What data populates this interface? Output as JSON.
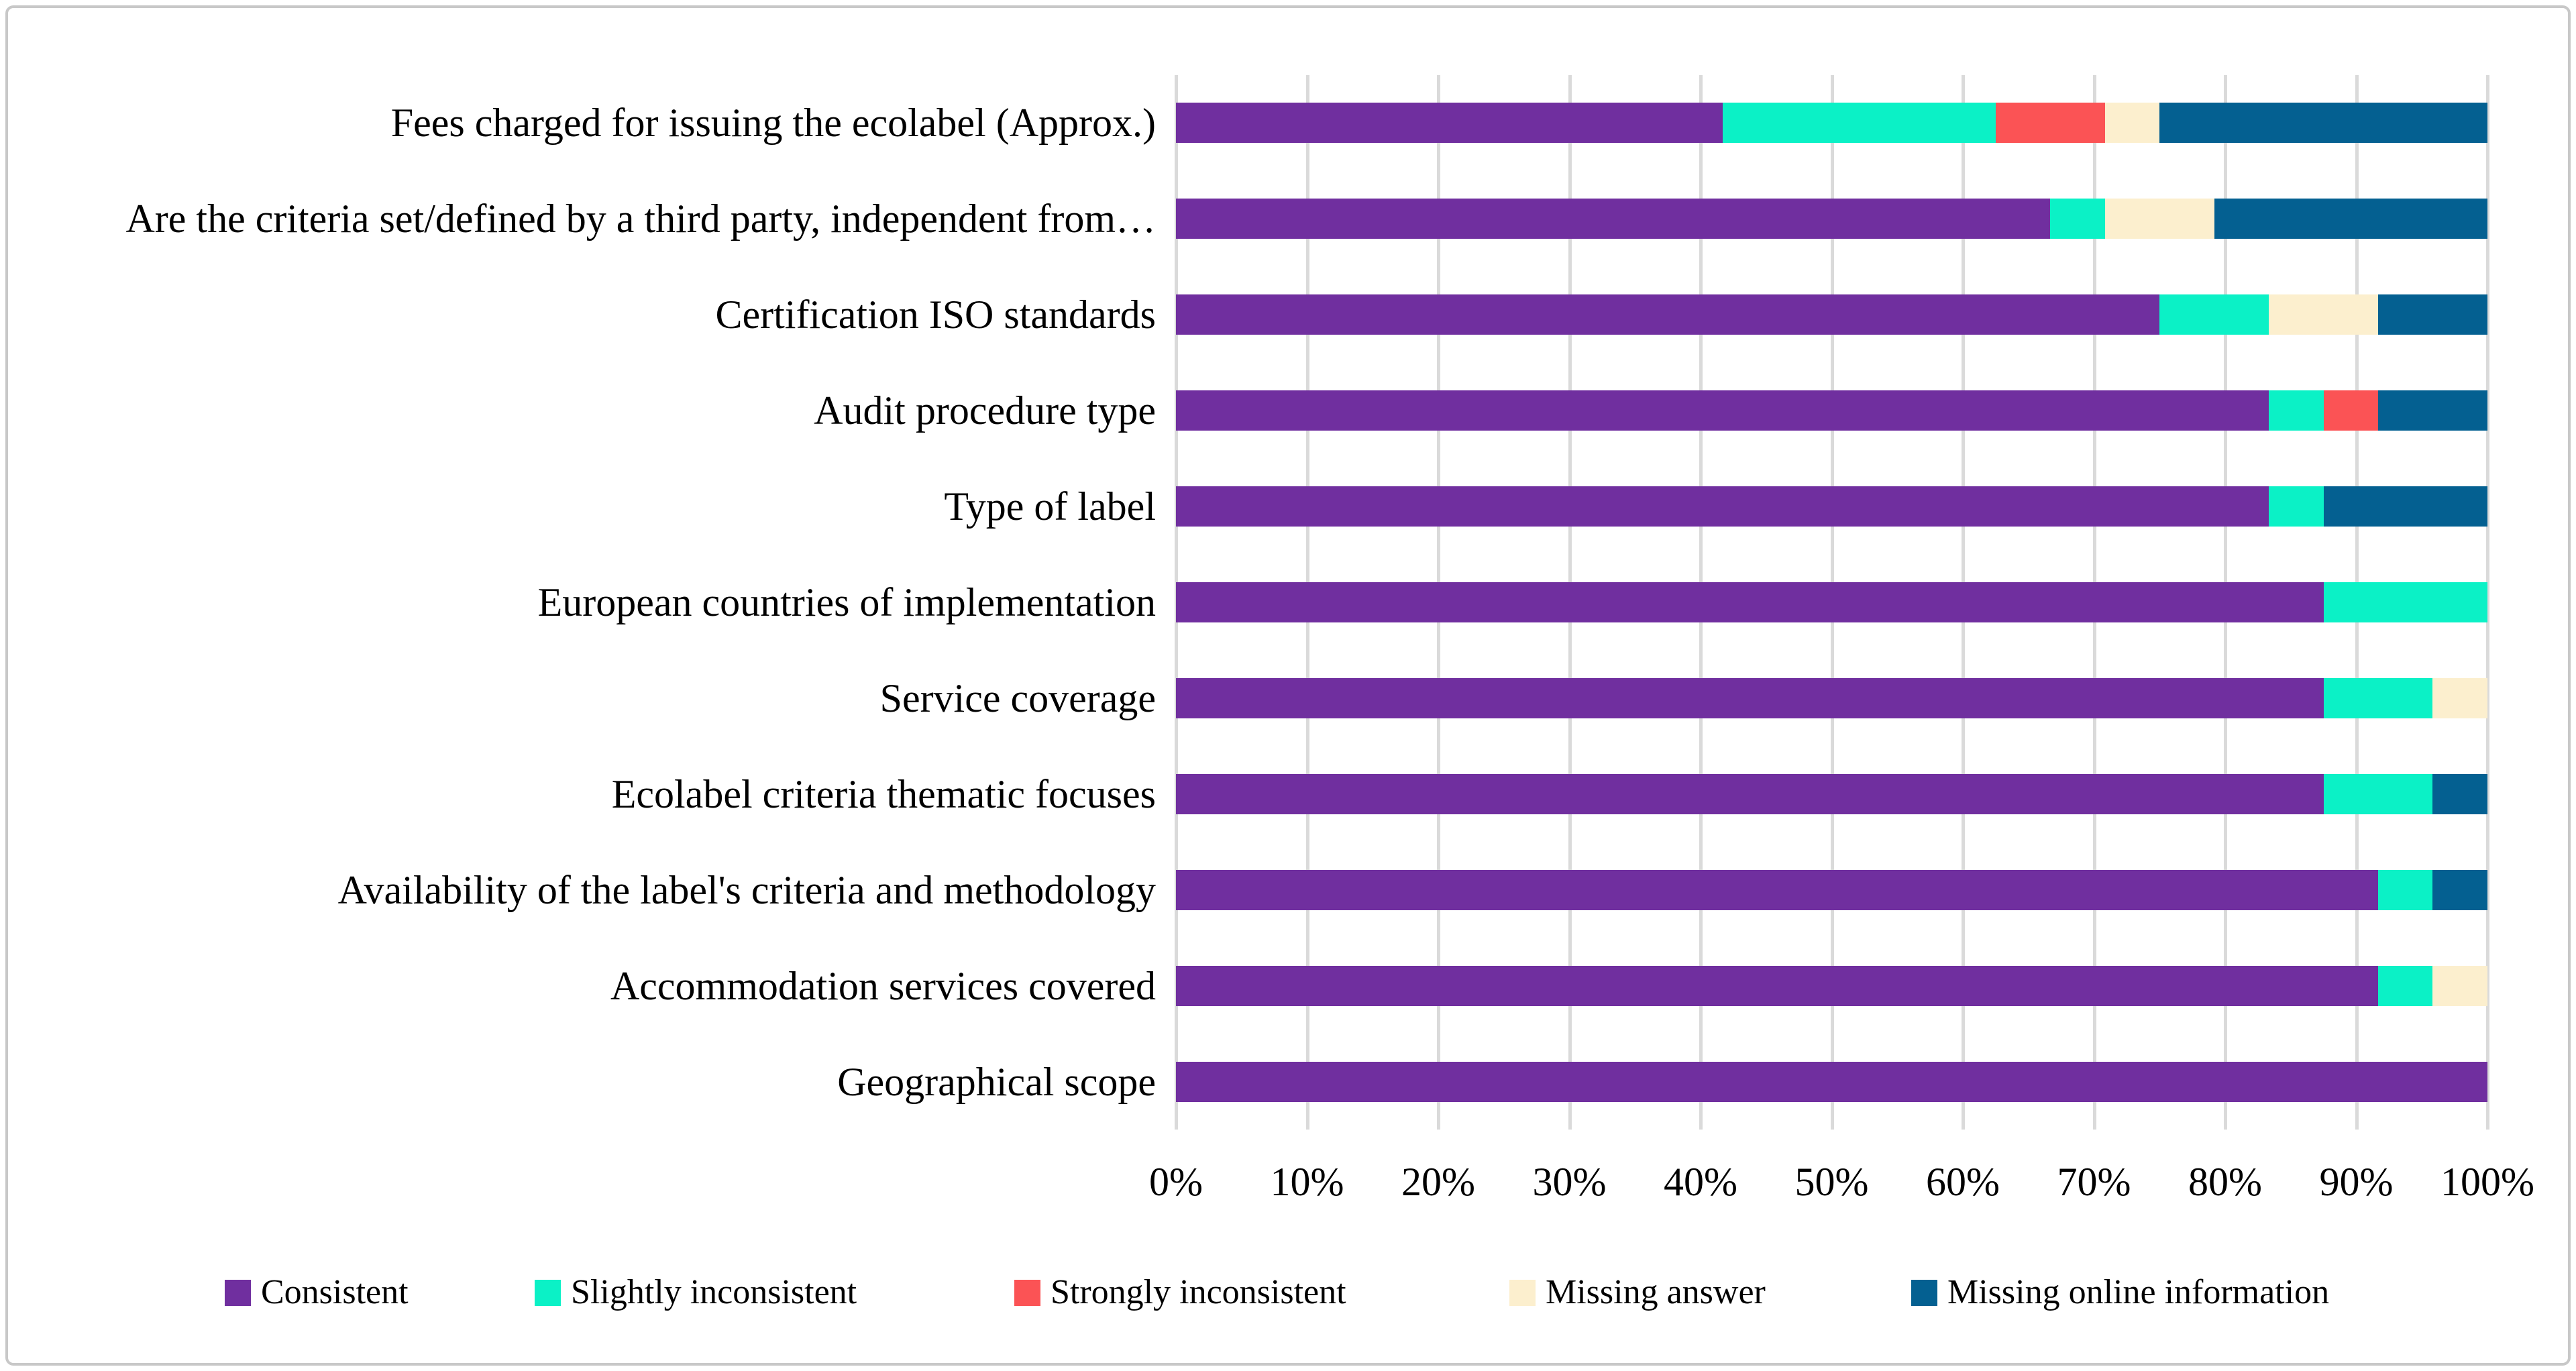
{
  "figure": {
    "background": "#ffffff",
    "border_color": "#c8c8c8",
    "gridline_color": "#dadada",
    "text_color": "#000000"
  },
  "chart_data": {
    "type": "bar",
    "orientation": "horizontal",
    "stacking": "100%",
    "title": "",
    "xlabel": "",
    "ylabel": "",
    "xlim": [
      0,
      100
    ],
    "grid": "vertical",
    "legend_position": "bottom",
    "x_ticks": [
      "0%",
      "10%",
      "20%",
      "30%",
      "40%",
      "50%",
      "60%",
      "70%",
      "80%",
      "90%",
      "100%"
    ],
    "categories": [
      "Fees charged for issuing the ecolabel (Approx.)",
      "Are the criteria set/defined by a third party, independent from…",
      "Certification ISO standards",
      "Audit procedure type",
      "Type of label",
      "European countries of implementation",
      "Service coverage",
      "Ecolabel criteria thematic focuses",
      "Availability of the label's criteria and methodology",
      "Accommodation services covered",
      "Geographical scope"
    ],
    "series": [
      {
        "name": "Consistent",
        "color": "#702f9f",
        "values": [
          41.67,
          66.67,
          75,
          83.33,
          83.33,
          87.5,
          87.5,
          87.5,
          91.67,
          91.67,
          100
        ]
      },
      {
        "name": "Slightly inconsistent",
        "color": "#0bf1c6",
        "values": [
          20.83,
          4.17,
          8.33,
          4.17,
          4.17,
          12.5,
          8.33,
          8.33,
          4.17,
          4.17,
          0
        ]
      },
      {
        "name": "Strongly inconsistent",
        "color": "#fb5355",
        "values": [
          8.33,
          0,
          0,
          4.17,
          0,
          0,
          0,
          0,
          0,
          0,
          0
        ]
      },
      {
        "name": "Missing answer",
        "color": "#fcefce",
        "values": [
          4.17,
          8.33,
          8.33,
          0,
          0,
          0,
          4.17,
          0,
          0,
          4.17,
          0
        ]
      },
      {
        "name": "Missing online information",
        "color": "#046091",
        "values": [
          25,
          20.83,
          8.33,
          8.33,
          12.5,
          0,
          0,
          4.17,
          4.17,
          0,
          0
        ]
      }
    ]
  }
}
